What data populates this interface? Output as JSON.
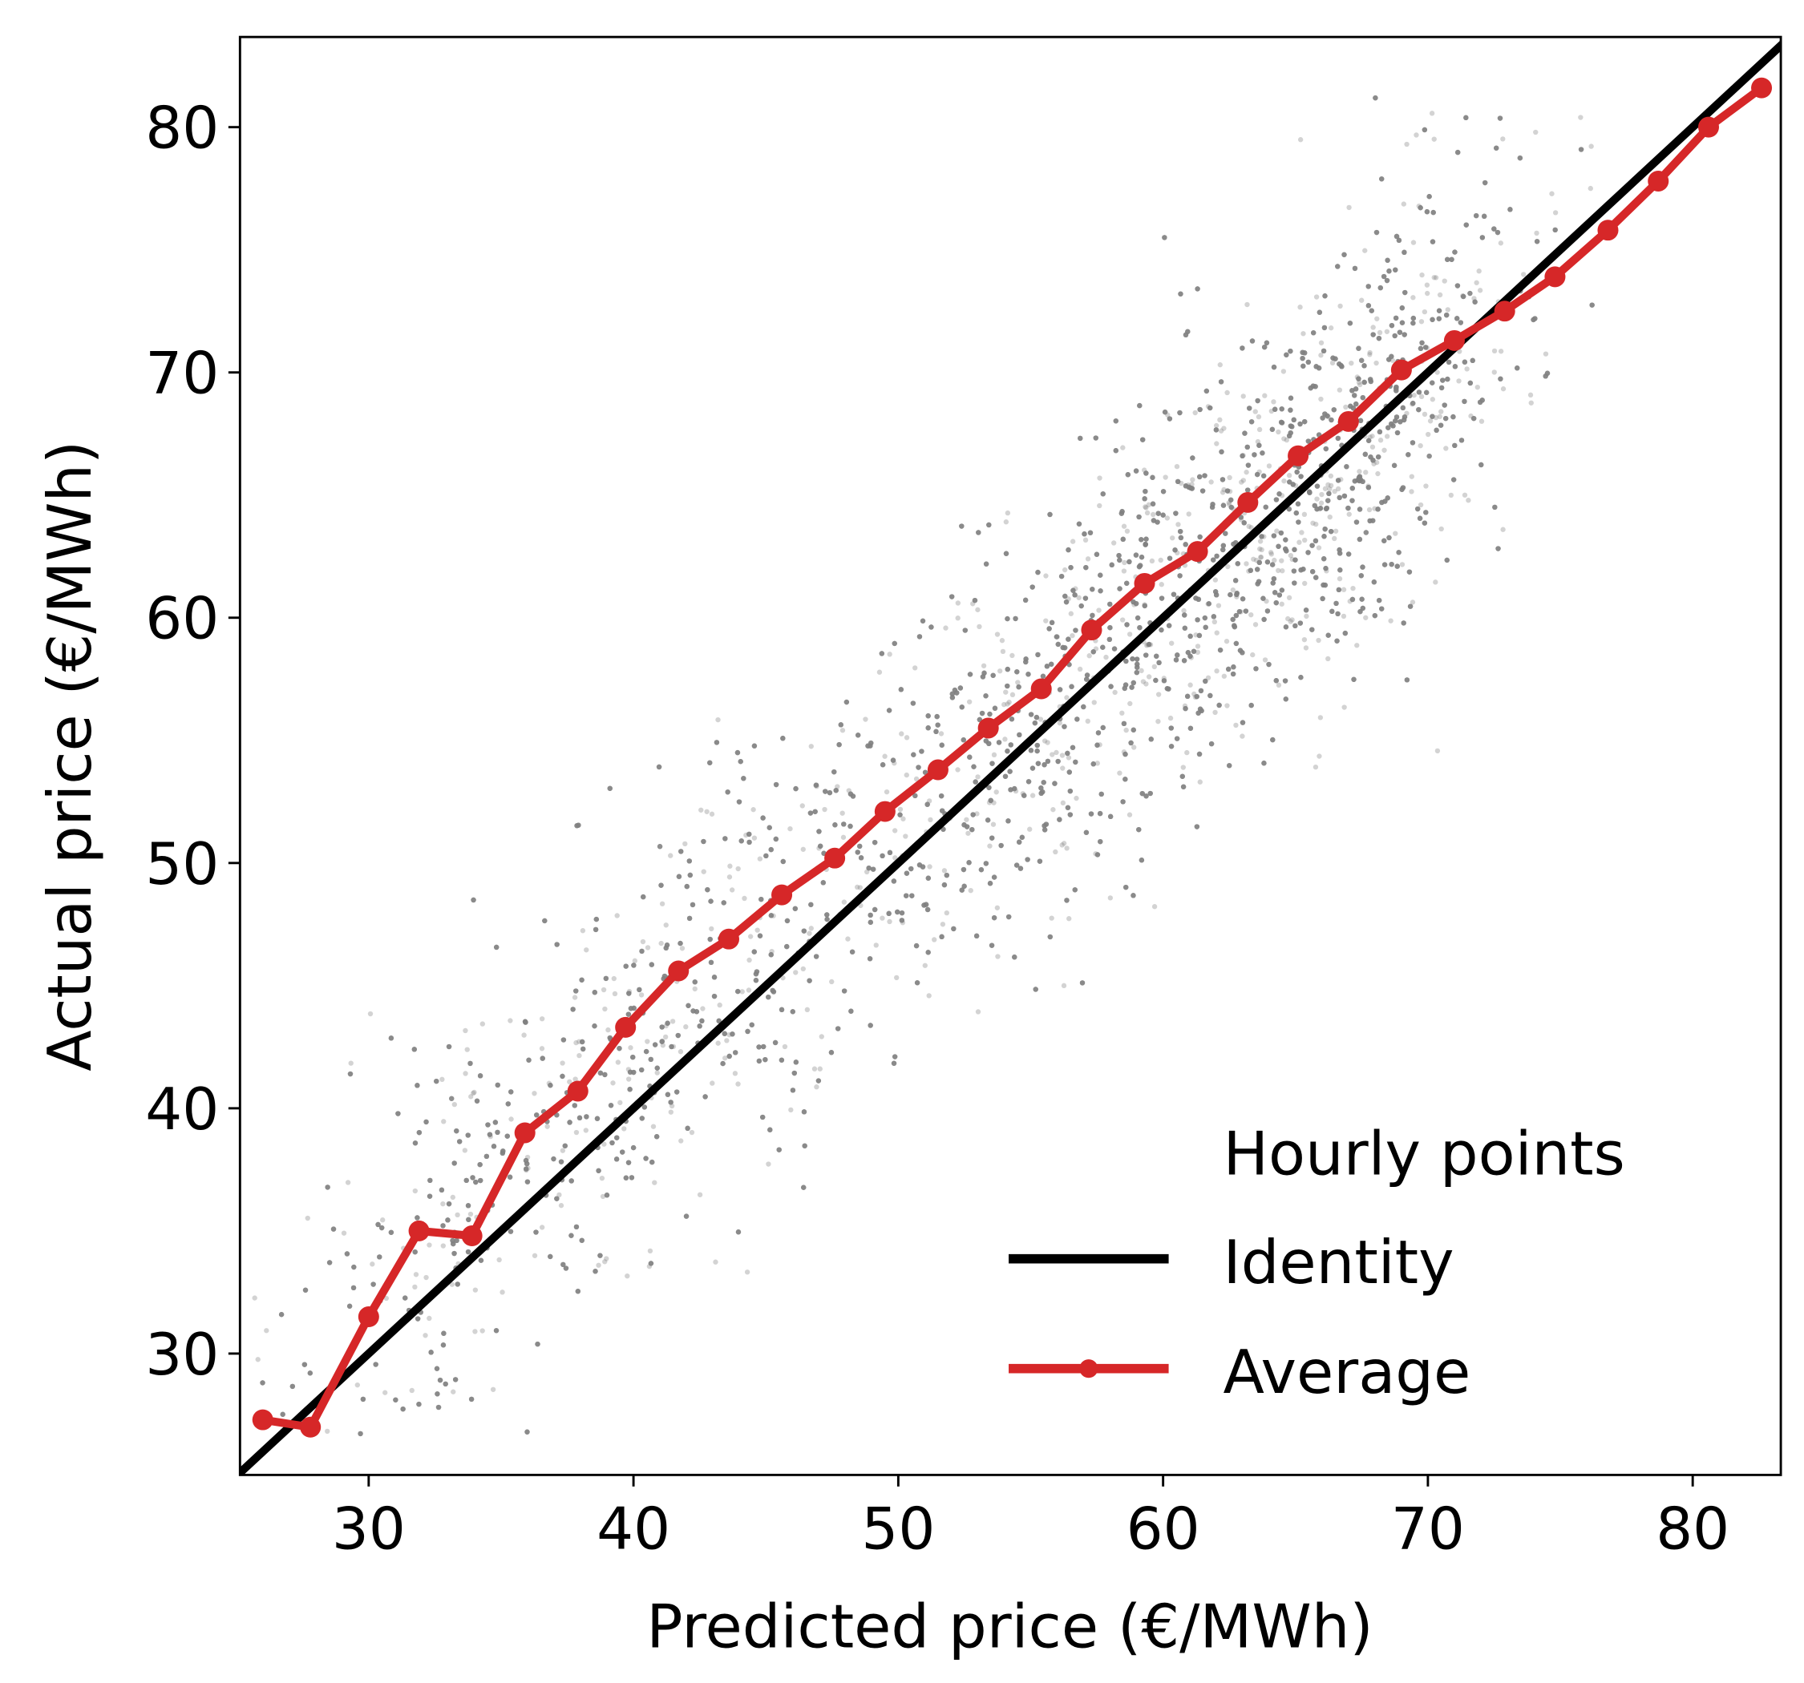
{
  "chart_data": {
    "type": "scatter",
    "title": "",
    "xlabel": "Predicted price (€/MWh)",
    "ylabel": "Actual price (€/MWh)",
    "xlim": [
      25.1,
      83.7
    ],
    "ylim": [
      25.1,
      83.7
    ],
    "xticks": [
      30,
      40,
      50,
      60,
      70,
      80
    ],
    "yticks": [
      30,
      40,
      50,
      60,
      70,
      80
    ],
    "grid": false,
    "legend_position": "lower right",
    "series": [
      {
        "name": "Hourly points",
        "kind": "scatter",
        "color": "#808080",
        "alpha": 0.35,
        "description": "Thousands of hourly (predicted, actual) points clustered around the identity line, densest between 55 and 80 €/MWh",
        "approx_count": 8000
      },
      {
        "name": "Identity",
        "kind": "line",
        "color": "#000000",
        "x": [
          25.1,
          83.7
        ],
        "y": [
          25.1,
          83.7
        ]
      },
      {
        "name": "Average",
        "kind": "line+markers",
        "color": "#d62728",
        "x": [
          26.0,
          27.8,
          30.0,
          31.9,
          33.9,
          35.9,
          37.9,
          39.7,
          41.7,
          43.6,
          45.6,
          47.6,
          49.5,
          51.5,
          53.4,
          55.4,
          57.3,
          59.3,
          61.3,
          63.2,
          65.1,
          67.0,
          69.0,
          71.0,
          72.9,
          74.8,
          76.8,
          78.7,
          80.6,
          82.6
        ],
        "y": [
          27.3,
          27.0,
          31.5,
          35.0,
          34.8,
          39.0,
          40.7,
          43.3,
          45.6,
          46.9,
          48.7,
          50.2,
          52.1,
          53.8,
          55.5,
          57.1,
          59.5,
          61.4,
          62.7,
          64.7,
          66.6,
          68.0,
          70.1,
          71.3,
          72.5,
          73.9,
          75.8,
          77.8,
          80.0,
          81.6
        ]
      }
    ]
  },
  "figure": {
    "xlabel": "Predicted price (€/MWh)",
    "ylabel": "Actual price (€/MWh)",
    "x_tick_labels": [
      "30",
      "40",
      "50",
      "60",
      "70",
      "80"
    ],
    "y_tick_labels": [
      "30",
      "40",
      "50",
      "60",
      "70",
      "80"
    ],
    "legend": {
      "items": [
        "Hourly points",
        "Identity",
        "Average"
      ]
    },
    "colors": {
      "scatter": "#808080",
      "identity": "#000000",
      "average": "#d62728"
    }
  }
}
